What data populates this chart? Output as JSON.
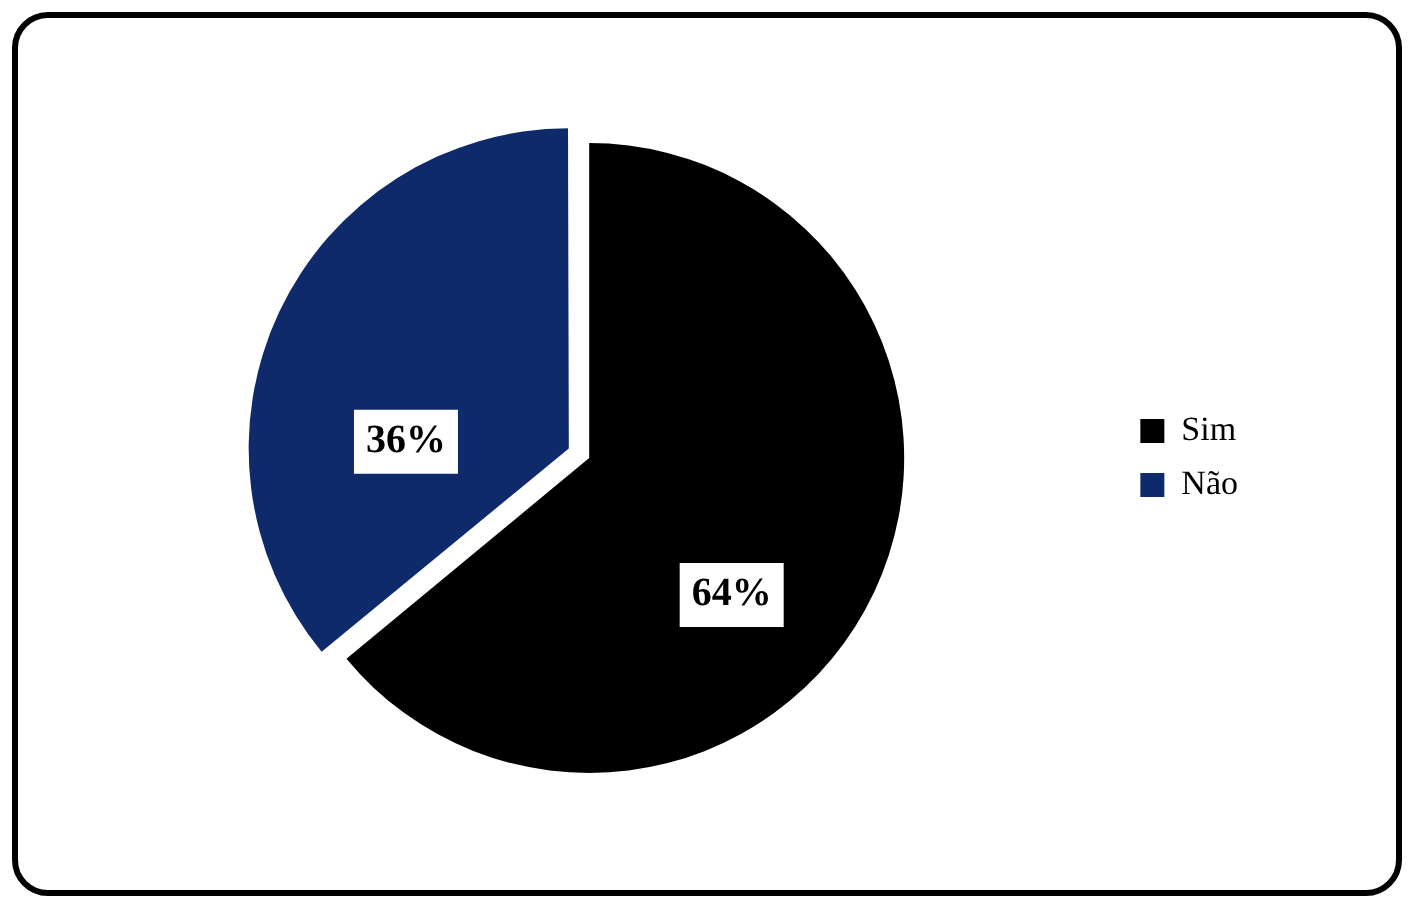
{
  "chart_data": {
    "type": "pie",
    "categories": [
      "Sim",
      "Não"
    ],
    "values": [
      64,
      36
    ],
    "colors": [
      "#000000",
      "#0e2a6b"
    ],
    "value_labels": [
      "64%",
      "36%"
    ],
    "legend": "right"
  }
}
